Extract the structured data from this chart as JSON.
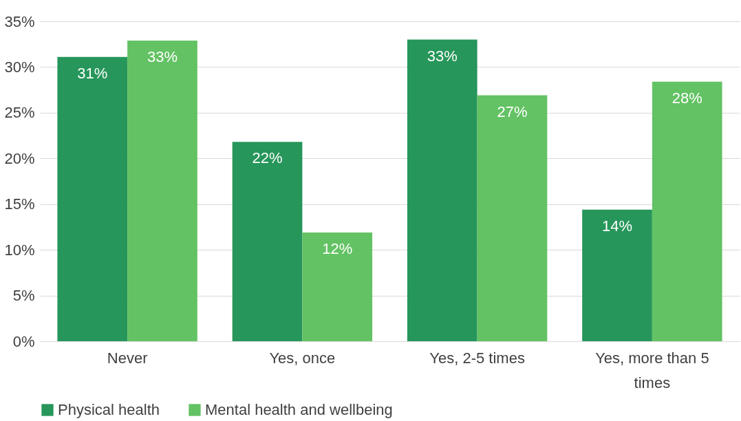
{
  "chart_data": {
    "type": "bar",
    "categories": [
      "Never",
      "Yes, once",
      "Yes, 2-5 times",
      "Yes, more than 5 times"
    ],
    "series": [
      {
        "name": "Physical health",
        "color": "#26965a",
        "values": [
          31.1,
          21.8,
          33.0,
          14.4
        ],
        "value_labels": [
          "31%",
          "22%",
          "33%",
          "14%"
        ]
      },
      {
        "name": "Mental health and wellbeing",
        "color": "#63c263",
        "values": [
          32.9,
          11.9,
          26.9,
          28.4
        ],
        "value_labels": [
          "33%",
          "12%",
          "27%",
          "28%"
        ]
      }
    ],
    "ylim": [
      0,
      35
    ],
    "yticks": [
      {
        "value": 0,
        "label": "0%"
      },
      {
        "value": 5,
        "label": "5%"
      },
      {
        "value": 10,
        "label": "10%"
      },
      {
        "value": 15,
        "label": "15%"
      },
      {
        "value": 20,
        "label": "20%"
      },
      {
        "value": 25,
        "label": "25%"
      },
      {
        "value": 30,
        "label": "30%"
      },
      {
        "value": 35,
        "label": "35%"
      }
    ],
    "grid": "y",
    "legend": "bottom"
  }
}
